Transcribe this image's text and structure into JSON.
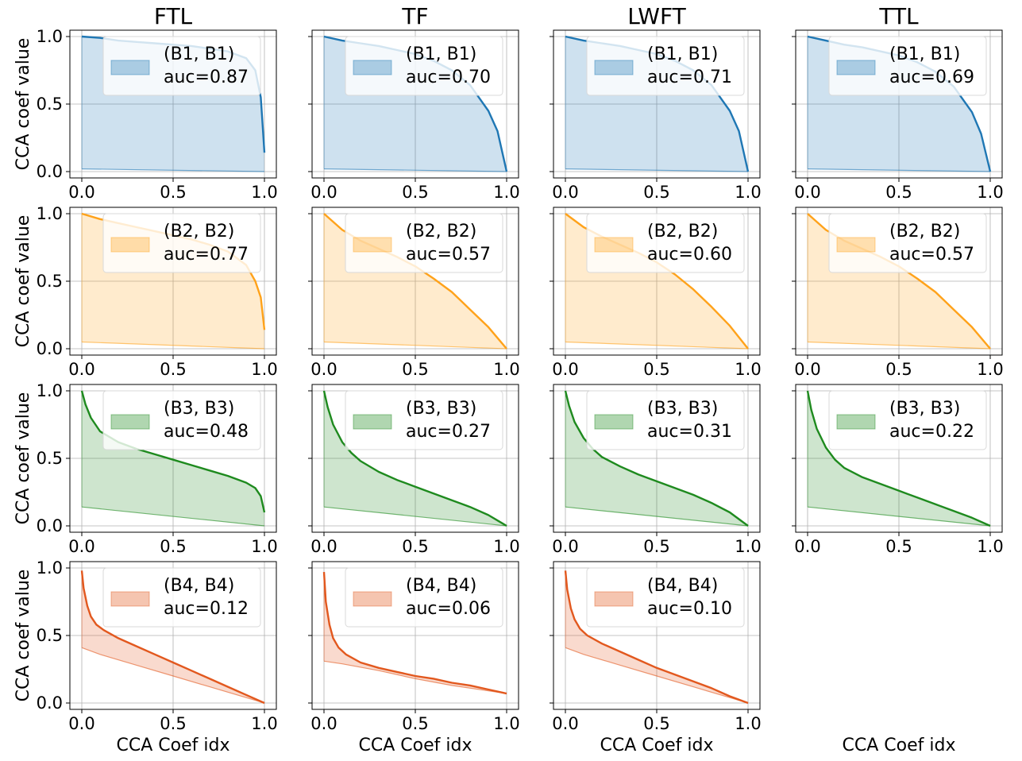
{
  "figure": {
    "column_titles": [
      "FTL",
      "TF",
      "LWFT",
      "TTL"
    ],
    "ylabel": "CCA coef value",
    "xlabel": "CCA Coef idx"
  },
  "chart_data": {
    "type": "area",
    "x_ticks": [
      "0.0",
      "0.5",
      "1.0"
    ],
    "y_ticks": [
      "0.0",
      "0.5",
      "1.0"
    ],
    "xlim": [
      0,
      1
    ],
    "ylim": [
      0,
      1
    ],
    "grid": true,
    "legend_position": "top-right",
    "row_colors": [
      "#1f77b4",
      "#ffa21a",
      "#1e8a1e",
      "#e2581e"
    ],
    "rows": [
      {
        "legend_name": "(B1, B1)",
        "panels": [
          {
            "auc_label": "auc=0.87",
            "upper": {
              "x": [
                0,
                0.1,
                0.2,
                0.3,
                0.4,
                0.5,
                0.6,
                0.7,
                0.8,
                0.9,
                0.95,
                0.98,
                1.0
              ],
              "y": [
                1.0,
                0.99,
                0.97,
                0.96,
                0.95,
                0.94,
                0.93,
                0.91,
                0.89,
                0.84,
                0.75,
                0.55,
                0.14
              ]
            },
            "lower": {
              "x": [
                0,
                1.0
              ],
              "y": [
                0.02,
                0.0
              ]
            }
          },
          {
            "auc_label": "auc=0.70",
            "upper": {
              "x": [
                0,
                0.1,
                0.2,
                0.3,
                0.4,
                0.5,
                0.6,
                0.7,
                0.8,
                0.9,
                0.95,
                1.0
              ],
              "y": [
                1.0,
                0.97,
                0.95,
                0.93,
                0.9,
                0.87,
                0.82,
                0.75,
                0.64,
                0.45,
                0.3,
                0.0
              ]
            },
            "lower": {
              "x": [
                0,
                1.0
              ],
              "y": [
                0.02,
                0.0
              ]
            }
          },
          {
            "auc_label": "auc=0.71",
            "upper": {
              "x": [
                0,
                0.1,
                0.2,
                0.3,
                0.4,
                0.5,
                0.6,
                0.7,
                0.8,
                0.9,
                0.95,
                1.0
              ],
              "y": [
                1.0,
                0.97,
                0.95,
                0.93,
                0.9,
                0.87,
                0.82,
                0.75,
                0.64,
                0.45,
                0.3,
                0.0
              ]
            },
            "lower": {
              "x": [
                0,
                1.0
              ],
              "y": [
                0.02,
                0.0
              ]
            }
          },
          {
            "auc_label": "auc=0.69",
            "upper": {
              "x": [
                0,
                0.1,
                0.2,
                0.3,
                0.4,
                0.5,
                0.6,
                0.7,
                0.8,
                0.9,
                0.95,
                1.0
              ],
              "y": [
                1.0,
                0.97,
                0.94,
                0.92,
                0.89,
                0.86,
                0.81,
                0.74,
                0.63,
                0.44,
                0.28,
                0.0
              ]
            },
            "lower": {
              "x": [
                0,
                1.0
              ],
              "y": [
                0.02,
                0.0
              ]
            }
          }
        ]
      },
      {
        "legend_name": "(B2, B2)",
        "panels": [
          {
            "auc_label": "auc=0.77",
            "upper": {
              "x": [
                0,
                0.1,
                0.2,
                0.3,
                0.4,
                0.5,
                0.6,
                0.7,
                0.8,
                0.9,
                0.95,
                0.98,
                1.0
              ],
              "y": [
                1.0,
                0.96,
                0.93,
                0.9,
                0.87,
                0.84,
                0.81,
                0.77,
                0.72,
                0.62,
                0.5,
                0.38,
                0.14
              ]
            },
            "lower": {
              "x": [
                0,
                1.0
              ],
              "y": [
                0.05,
                0.0
              ]
            }
          },
          {
            "auc_label": "auc=0.57",
            "upper": {
              "x": [
                0,
                0.1,
                0.2,
                0.3,
                0.4,
                0.5,
                0.6,
                0.7,
                0.8,
                0.9,
                1.0
              ],
              "y": [
                1.0,
                0.88,
                0.8,
                0.74,
                0.68,
                0.61,
                0.52,
                0.42,
                0.29,
                0.16,
                0.0
              ]
            },
            "lower": {
              "x": [
                0,
                1.0
              ],
              "y": [
                0.05,
                0.0
              ]
            }
          },
          {
            "auc_label": "auc=0.60",
            "upper": {
              "x": [
                0,
                0.1,
                0.2,
                0.3,
                0.4,
                0.5,
                0.6,
                0.7,
                0.8,
                0.9,
                1.0
              ],
              "y": [
                1.0,
                0.9,
                0.83,
                0.77,
                0.71,
                0.64,
                0.55,
                0.44,
                0.31,
                0.17,
                0.0
              ]
            },
            "lower": {
              "x": [
                0,
                1.0
              ],
              "y": [
                0.05,
                0.0
              ]
            }
          },
          {
            "auc_label": "auc=0.57",
            "upper": {
              "x": [
                0,
                0.1,
                0.2,
                0.3,
                0.4,
                0.5,
                0.6,
                0.7,
                0.8,
                0.9,
                1.0
              ],
              "y": [
                1.0,
                0.88,
                0.8,
                0.74,
                0.68,
                0.61,
                0.52,
                0.42,
                0.29,
                0.16,
                0.0
              ]
            },
            "lower": {
              "x": [
                0,
                1.0
              ],
              "y": [
                0.05,
                0.0
              ]
            }
          }
        ]
      },
      {
        "legend_name": "(B3, B3)",
        "panels": [
          {
            "auc_label": "auc=0.48",
            "upper": {
              "x": [
                0,
                0.02,
                0.05,
                0.1,
                0.2,
                0.3,
                0.4,
                0.5,
                0.6,
                0.7,
                0.8,
                0.9,
                0.95,
                0.98,
                1.0
              ],
              "y": [
                1.0,
                0.9,
                0.8,
                0.7,
                0.62,
                0.57,
                0.53,
                0.49,
                0.45,
                0.41,
                0.37,
                0.32,
                0.28,
                0.22,
                0.1
              ]
            },
            "lower": {
              "x": [
                0,
                1.0
              ],
              "y": [
                0.14,
                0.0
              ]
            }
          },
          {
            "auc_label": "auc=0.27",
            "upper": {
              "x": [
                0,
                0.02,
                0.05,
                0.1,
                0.15,
                0.2,
                0.3,
                0.4,
                0.5,
                0.6,
                0.7,
                0.8,
                0.9,
                1.0
              ],
              "y": [
                1.0,
                0.88,
                0.75,
                0.62,
                0.54,
                0.48,
                0.4,
                0.34,
                0.29,
                0.24,
                0.19,
                0.14,
                0.08,
                0.0
              ]
            },
            "lower": {
              "x": [
                0,
                1.0
              ],
              "y": [
                0.14,
                0.0
              ]
            }
          },
          {
            "auc_label": "auc=0.31",
            "upper": {
              "x": [
                0,
                0.02,
                0.05,
                0.1,
                0.15,
                0.2,
                0.3,
                0.4,
                0.5,
                0.6,
                0.7,
                0.8,
                0.9,
                1.0
              ],
              "y": [
                1.0,
                0.89,
                0.77,
                0.65,
                0.57,
                0.51,
                0.44,
                0.38,
                0.33,
                0.28,
                0.23,
                0.17,
                0.1,
                0.0
              ]
            },
            "lower": {
              "x": [
                0,
                1.0
              ],
              "y": [
                0.14,
                0.0
              ]
            }
          },
          {
            "auc_label": "auc=0.22",
            "upper": {
              "x": [
                0,
                0.02,
                0.05,
                0.1,
                0.15,
                0.2,
                0.3,
                0.4,
                0.5,
                0.6,
                0.7,
                0.8,
                0.9,
                1.0
              ],
              "y": [
                1.0,
                0.86,
                0.72,
                0.58,
                0.49,
                0.43,
                0.36,
                0.31,
                0.26,
                0.21,
                0.16,
                0.11,
                0.06,
                0.0
              ]
            },
            "lower": {
              "x": [
                0,
                1.0
              ],
              "y": [
                0.14,
                0.0
              ]
            }
          }
        ]
      },
      {
        "legend_name": "(B4, B4)",
        "panels": [
          {
            "auc_label": "auc=0.12",
            "upper": {
              "x": [
                0,
                0.01,
                0.03,
                0.05,
                0.08,
                0.12,
                0.2,
                0.3,
                0.4,
                0.5,
                0.6,
                0.7,
                0.8,
                0.9,
                1.0
              ],
              "y": [
                0.98,
                0.85,
                0.72,
                0.64,
                0.58,
                0.54,
                0.48,
                0.42,
                0.36,
                0.3,
                0.24,
                0.18,
                0.12,
                0.06,
                0.0
              ]
            },
            "lower": {
              "x": [
                0,
                0.1,
                0.3,
                0.5,
                0.7,
                0.9,
                1.0
              ],
              "y": [
                0.41,
                0.36,
                0.28,
                0.2,
                0.12,
                0.04,
                0.0
              ]
            }
          },
          {
            "auc_label": "auc=0.06",
            "upper": {
              "x": [
                0,
                0.01,
                0.03,
                0.05,
                0.08,
                0.12,
                0.2,
                0.3,
                0.4,
                0.5,
                0.6,
                0.7,
                0.8,
                0.9,
                1.0
              ],
              "y": [
                0.97,
                0.75,
                0.58,
                0.48,
                0.41,
                0.36,
                0.3,
                0.26,
                0.23,
                0.2,
                0.18,
                0.15,
                0.13,
                0.1,
                0.07
              ]
            },
            "lower": {
              "x": [
                0,
                0.1,
                0.3,
                0.5,
                0.7,
                0.9,
                1.0
              ],
              "y": [
                0.31,
                0.29,
                0.24,
                0.18,
                0.13,
                0.09,
                0.07
              ]
            }
          },
          {
            "auc_label": "auc=0.10",
            "upper": {
              "x": [
                0,
                0.01,
                0.03,
                0.05,
                0.08,
                0.12,
                0.2,
                0.3,
                0.4,
                0.5,
                0.6,
                0.7,
                0.8,
                0.9,
                1.0
              ],
              "y": [
                0.98,
                0.84,
                0.7,
                0.62,
                0.55,
                0.5,
                0.44,
                0.38,
                0.32,
                0.26,
                0.21,
                0.16,
                0.11,
                0.05,
                0.0
              ]
            },
            "lower": {
              "x": [
                0,
                0.1,
                0.3,
                0.5,
                0.7,
                0.9,
                1.0
              ],
              "y": [
                0.41,
                0.36,
                0.28,
                0.2,
                0.12,
                0.04,
                0.0
              ]
            }
          },
          null
        ]
      }
    ]
  }
}
